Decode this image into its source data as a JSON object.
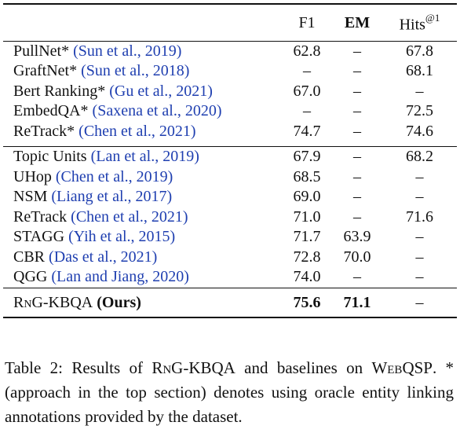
{
  "table": {
    "headers": {
      "method": "",
      "f1": "F1",
      "em": "EM",
      "hits": "Hits",
      "hits_sup": "@1"
    },
    "sections": [
      {
        "rows": [
          {
            "name": "PullNet*",
            "cite": "(Sun et al., 2019)",
            "f1": "62.8",
            "em": "–",
            "hits": "67.8"
          },
          {
            "name": "GraftNet*",
            "cite": "(Sun et al., 2018)",
            "f1": "–",
            "em": "–",
            "hits": "68.1"
          },
          {
            "name": "Bert Ranking*",
            "cite": "(Gu et al., 2021)",
            "f1": "67.0",
            "em": "–",
            "hits": "–"
          },
          {
            "name": "EmbedQA*",
            "cite": "(Saxena et al., 2020)",
            "f1": "–",
            "em": "–",
            "hits": "72.5"
          },
          {
            "name": "ReTrack*",
            "cite": "(Chen et al., 2021)",
            "f1": "74.7",
            "em": "–",
            "hits": "74.6"
          }
        ]
      },
      {
        "rows": [
          {
            "name": "Topic Units",
            "cite": "(Lan et al., 2019)",
            "f1": "67.9",
            "em": "–",
            "hits": "68.2"
          },
          {
            "name": "UHop",
            "cite": "(Chen et al., 2019)",
            "f1": "68.5",
            "em": "–",
            "hits": "–"
          },
          {
            "name": "NSM",
            "cite": "(Liang et al., 2017)",
            "f1": "69.0",
            "em": "–",
            "hits": "–"
          },
          {
            "name": "ReTrack",
            "cite": "(Chen et al., 2021)",
            "f1": "71.0",
            "em": "–",
            "hits": "71.6"
          },
          {
            "name": "STAGG",
            "cite": "(Yih et al., 2015)",
            "f1": "71.7",
            "em": "63.9",
            "hits": "–"
          },
          {
            "name": "CBR",
            "cite": "(Das et al., 2021)",
            "f1": "72.8",
            "em": "70.0",
            "hits": "–"
          },
          {
            "name": "QGG",
            "cite": "(Lan and Jiang, 2020)",
            "f1": "74.0",
            "em": "–",
            "hits": "–"
          }
        ]
      }
    ],
    "ours": {
      "name": "RnG-KBQA",
      "tag": "(Ours)",
      "f1": "75.6",
      "em": "71.1",
      "hits": "–"
    }
  },
  "caption": {
    "label": "Table 2:",
    "text_1": "Results of",
    "model": "RnG-KBQA",
    "text_2": "and baselines on",
    "dataset": "WebQSP",
    "text_3": ". * (approach in the top section) denotes using oracle entity linking annotations provided by the dataset."
  }
}
